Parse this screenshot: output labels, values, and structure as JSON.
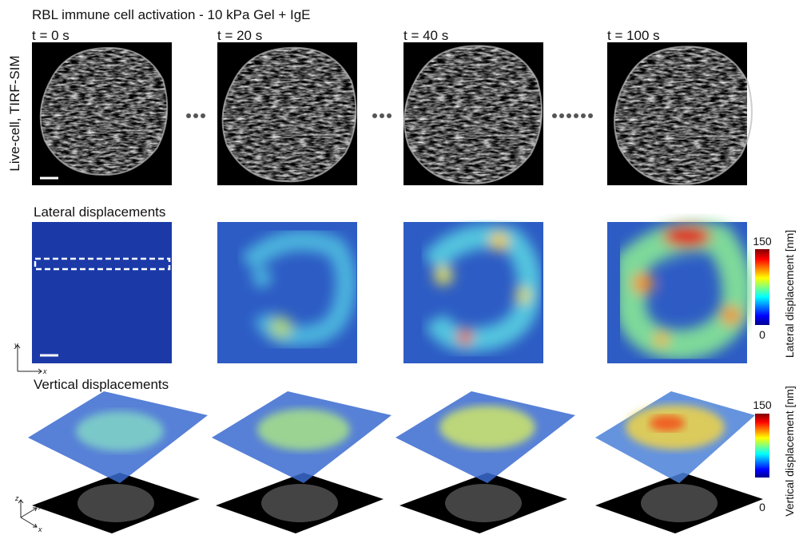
{
  "figure": {
    "title": "RBL immune cell activation - 10 kPa Gel + IgE",
    "time_labels": [
      "t = 0 s",
      "t = 20 s",
      "t = 40 s",
      "t = 100 s"
    ],
    "row_label": "Live-cell, TIRF-SIM",
    "sections": [
      {
        "title": "Lateral displacements",
        "colorbar": {
          "label": "Lateral displacement [nm]",
          "max": 150,
          "min": 0
        }
      },
      {
        "title": "Vertical displacements",
        "colorbar": {
          "label": "Vertical displacement [nm]",
          "max": 150,
          "min": 0
        }
      }
    ],
    "axes": {
      "x": "x",
      "y": "y",
      "z": "z"
    }
  }
}
